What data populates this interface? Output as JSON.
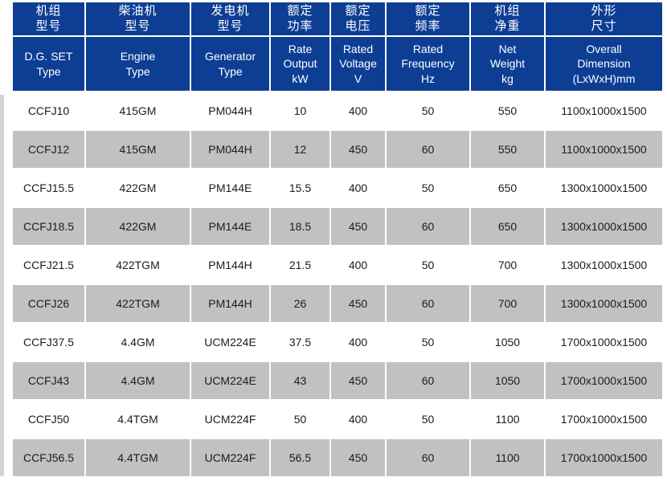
{
  "colors": {
    "page_bg": "#ffffff",
    "header_bg": "#0d3e94",
    "header_text": "#ffffff",
    "alt_row_bg": "#c2c1bf",
    "body_text": "#1c1c1c"
  },
  "table": {
    "columns": [
      {
        "id": "dg-set-type",
        "cn_lines": [
          "机组",
          "型号"
        ],
        "en_lines": [
          "D.G. SET",
          "Type"
        ]
      },
      {
        "id": "engine-type",
        "cn_lines": [
          "柴油机",
          "型号"
        ],
        "en_lines": [
          "Engine",
          "Type"
        ]
      },
      {
        "id": "generator-type",
        "cn_lines": [
          "发电机",
          "型号"
        ],
        "en_lines": [
          "Generator",
          "Type"
        ]
      },
      {
        "id": "rate-output",
        "cn_lines": [
          "额定",
          "功率"
        ],
        "en_lines": [
          "Rate",
          "Output",
          "kW"
        ]
      },
      {
        "id": "rated-voltage",
        "cn_lines": [
          "额定",
          "电压"
        ],
        "en_lines": [
          "Rated",
          "Voltage",
          "V"
        ]
      },
      {
        "id": "rated-frequency",
        "cn_lines": [
          "额定",
          "频率"
        ],
        "en_lines": [
          "Rated",
          "Frequency",
          "Hz"
        ]
      },
      {
        "id": "net-weight",
        "cn_lines": [
          "机组",
          "净重"
        ],
        "en_lines": [
          "Net",
          "Weight",
          "kg"
        ]
      },
      {
        "id": "overall-dimension",
        "cn_lines": [
          "外形",
          "尺寸"
        ],
        "en_lines": [
          "Overall",
          "Dimension",
          "(LxWxH)mm"
        ]
      }
    ],
    "rows": [
      [
        "CCFJ10",
        "415GM",
        "PM044H",
        "10",
        "400",
        "50",
        "550",
        "1100x1000x1500"
      ],
      [
        "CCFJ12",
        "415GM",
        "PM044H",
        "12",
        "450",
        "60",
        "550",
        "1100x1000x1500"
      ],
      [
        "CCFJ15.5",
        "422GM",
        "PM144E",
        "15.5",
        "400",
        "50",
        "650",
        "1300x1000x1500"
      ],
      [
        "CCFJ18.5",
        "422GM",
        "PM144E",
        "18.5",
        "450",
        "60",
        "650",
        "1300x1000x1500"
      ],
      [
        "CCFJ21.5",
        "422TGM",
        "PM144H",
        "21.5",
        "400",
        "50",
        "700",
        "1300x1000x1500"
      ],
      [
        "CCFJ26",
        "422TGM",
        "PM144H",
        "26",
        "450",
        "60",
        "700",
        "1300x1000x1500"
      ],
      [
        "CCFJ37.5",
        "4.4GM",
        "UCM224E",
        "37.5",
        "400",
        "50",
        "1050",
        "1700x1000x1500"
      ],
      [
        "CCFJ43",
        "4.4GM",
        "UCM224E",
        "43",
        "450",
        "60",
        "1050",
        "1700x1000x1500"
      ],
      [
        "CCFJ50",
        "4.4TGM",
        "UCM224F",
        "50",
        "400",
        "50",
        "1100",
        "1700x1000x1500"
      ],
      [
        "CCFJ56.5",
        "4.4TGM",
        "UCM224F",
        "56.5",
        "450",
        "60",
        "1100",
        "1700x1000x1500"
      ]
    ]
  }
}
